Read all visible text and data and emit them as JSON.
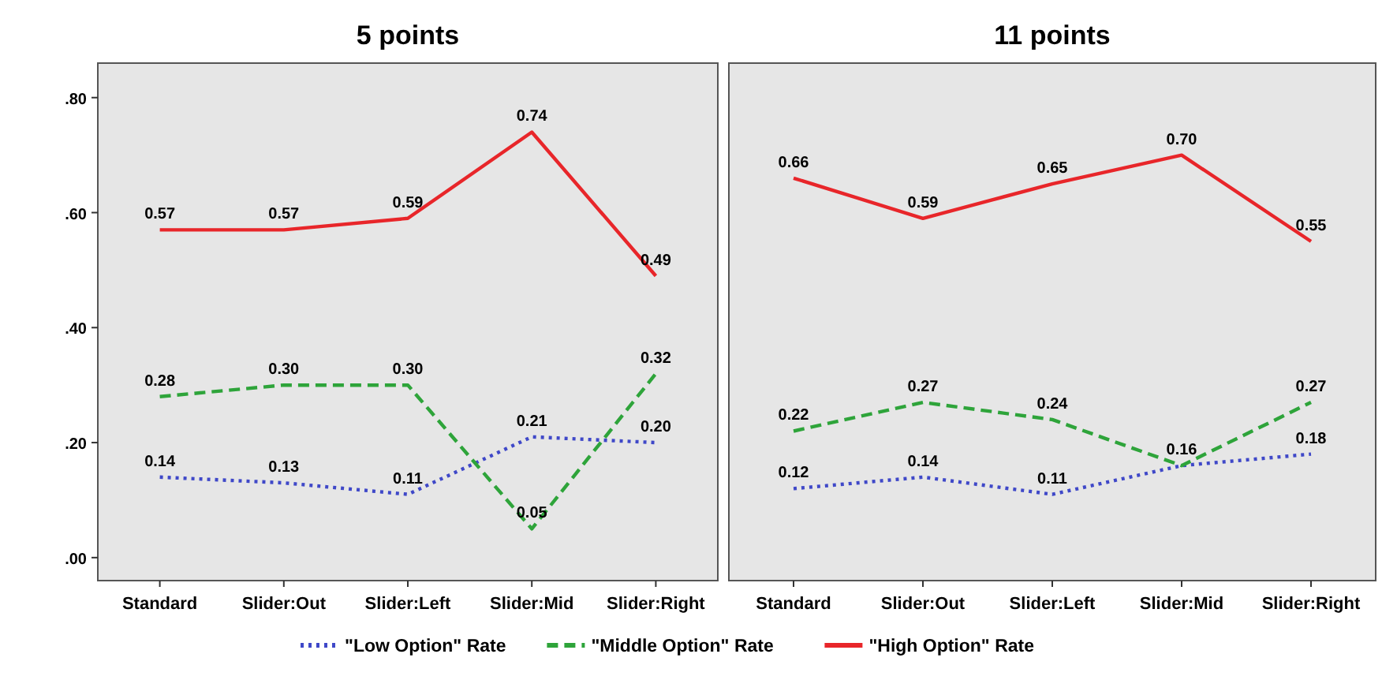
{
  "chart_data": [
    {
      "type": "line",
      "title": "5 points",
      "categories": [
        "Standard",
        "Slider:Out",
        "Slider:Left",
        "Slider:Mid",
        "Slider:Right"
      ],
      "ylim": [
        -0.04,
        0.86
      ],
      "yticks": [
        {
          "value": 0,
          "label": ".00"
        },
        {
          "value": 0.2,
          "label": ".20"
        },
        {
          "value": 0.4,
          "label": ".40"
        },
        {
          "value": 0.6,
          "label": ".60"
        },
        {
          "value": 0.8,
          "label": ".80"
        }
      ],
      "legend": "bottom",
      "marker": "none",
      "series": [
        {
          "name": "\"Low Option\" Rate",
          "color": "#3f48c8",
          "line_style": "dotted",
          "values": [
            0.14,
            0.13,
            0.11,
            0.21,
            0.2
          ],
          "value_labels": [
            "0.14",
            "0.13",
            "0.11",
            "0.21",
            "0.20"
          ]
        },
        {
          "name": "\"Middle Option\" Rate",
          "color": "#2ea43a",
          "line_style": "dashed",
          "values": [
            0.28,
            0.3,
            0.3,
            0.05,
            0.32
          ],
          "value_labels": [
            "0.28",
            "0.30",
            "0.30",
            "0.05",
            "0.32"
          ]
        },
        {
          "name": "\"High Option\" Rate",
          "color": "#e8262a",
          "line_style": "solid",
          "values": [
            0.57,
            0.57,
            0.59,
            0.74,
            0.49
          ],
          "value_labels": [
            "0.57",
            "0.57",
            "0.59",
            "0.74",
            "0.49"
          ]
        }
      ]
    },
    {
      "type": "line",
      "title": "11 points",
      "categories": [
        "Standard",
        "Slider:Out",
        "Slider:Left",
        "Slider:Mid",
        "Slider:Right"
      ],
      "ylim": [
        -0.04,
        0.86
      ],
      "tick_labels": "x",
      "marker": "none",
      "series": [
        {
          "color": "#3f48c8",
          "line_style": "dotted",
          "values": [
            0.12,
            0.14,
            0.11,
            0.16,
            0.18
          ],
          "value_labels": [
            "0.12",
            "0.14",
            "0.11",
            "0.16",
            "0.18"
          ]
        },
        {
          "color": "#2ea43a",
          "line_style": "dashed",
          "values": [
            0.22,
            0.27,
            0.24,
            0.16,
            0.27
          ],
          "value_labels": [
            "0.22",
            "0.27",
            "0.24",
            null,
            "0.27"
          ]
        },
        {
          "color": "#e8262a",
          "line_style": "solid",
          "values": [
            0.66,
            0.59,
            0.65,
            0.7,
            0.55
          ],
          "value_labels": [
            "0.66",
            "0.59",
            "0.65",
            "0.70",
            "0.55"
          ]
        }
      ]
    }
  ]
}
